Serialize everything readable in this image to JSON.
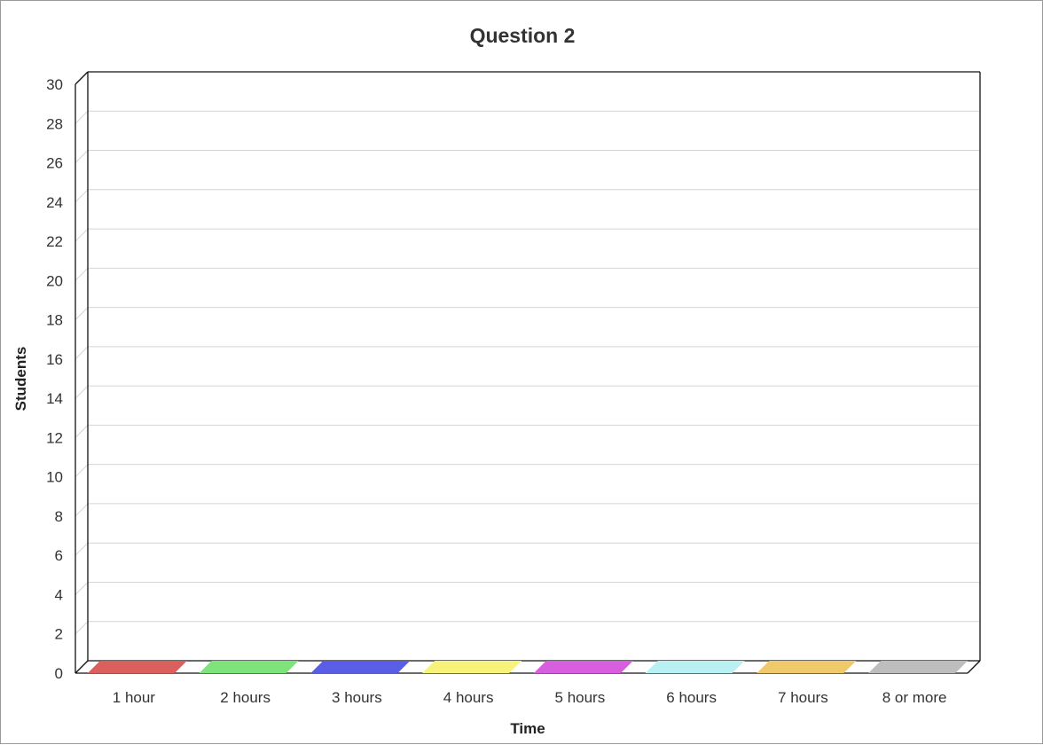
{
  "chart_data": {
    "type": "bar",
    "title": "Question 2",
    "xlabel": "Time",
    "ylabel": "Students",
    "categories": [
      "1 hour",
      "2 hours",
      "3 hours",
      "4 hours",
      "5 hours",
      "6 hours",
      "7 hours",
      "8 or more"
    ],
    "values": [
      0,
      0,
      0,
      0,
      0,
      0,
      0,
      0
    ],
    "colors": [
      "#d9605d",
      "#7ee37a",
      "#5a5ee6",
      "#f7f27a",
      "#d85ee0",
      "#b9f1f3",
      "#f0c96a",
      "#bdbdbd"
    ],
    "ylim": [
      0,
      30
    ],
    "yticks": [
      0,
      2,
      4,
      6,
      8,
      10,
      12,
      14,
      16,
      18,
      20,
      22,
      24,
      26,
      28,
      30
    ],
    "grid": true,
    "style": "3d",
    "legend": "none"
  }
}
